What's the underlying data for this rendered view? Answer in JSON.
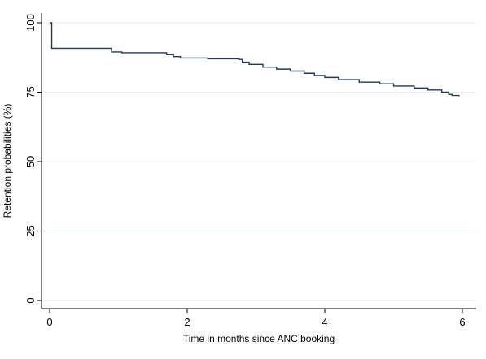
{
  "chart_data": {
    "type": "line",
    "step": true,
    "title": "",
    "xlabel": "Time in months since ANC booking",
    "ylabel": "Retention probabilities (%)",
    "xlim": [
      0,
      6
    ],
    "ylim": [
      0,
      100
    ],
    "x_ticks": [
      "0",
      "2",
      "4",
      "6"
    ],
    "y_ticks": [
      "0",
      "25",
      "50",
      "75",
      "100"
    ],
    "grid": "horizontal",
    "legend": "none",
    "series": [
      {
        "color": "#1f3a5a",
        "x": [
          0,
          0.03,
          0.03,
          0.55,
          0.9,
          1.05,
          1.7,
          1.8,
          1.9,
          2.3,
          2.75,
          2.8,
          2.9,
          3.1,
          3.3,
          3.5,
          3.7,
          3.85,
          4.0,
          4.2,
          4.5,
          4.8,
          5.0,
          5.3,
          5.5,
          5.7,
          5.8,
          5.85,
          5.95
        ],
        "y": [
          100,
          100,
          90.8,
          90.8,
          89.5,
          89.2,
          88.5,
          87.8,
          87.3,
          87.0,
          86.8,
          85.8,
          85.0,
          84.0,
          83.3,
          82.6,
          81.8,
          81.0,
          80.3,
          79.5,
          78.6,
          78.0,
          77.2,
          76.5,
          75.8,
          75.0,
          74.2,
          73.8,
          73.5
        ]
      }
    ],
    "colors": {
      "plot_background": "#ffffff",
      "gridline": "#e3eef4",
      "axis": "#000000"
    }
  }
}
